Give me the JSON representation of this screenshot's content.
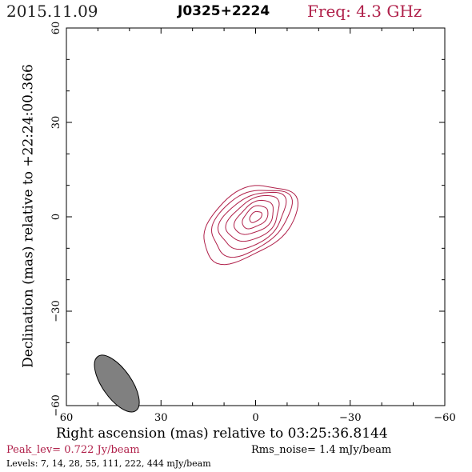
{
  "header": {
    "date": "2015.11.09",
    "source": "J0325+2224",
    "frequency": "Freq: 4.3 GHz"
  },
  "footer": {
    "peak_level": "Peak_lev=  0.722 Jy/beam",
    "rms_noise": "Rms_noise=   1.4 mJy/beam",
    "levels": "Levels:   7,  14,  28,  55, 111, 222, 444 mJy/beam"
  },
  "colors": {
    "contour": "#b0204a",
    "beam_fill": "#808080",
    "axis": "#000000"
  },
  "chart_data": {
    "type": "contour",
    "xlabel": "Right ascension (mas) relative to 03:25:36.8144",
    "ylabel": "Declination (mas) relative to +22:24:00.366",
    "xlim": [
      60,
      -60
    ],
    "ylim": [
      -60,
      60
    ],
    "x_ticks": [
      "60",
      "30",
      "0",
      "−30",
      "−60"
    ],
    "y_ticks": [
      "−60",
      "−30",
      "0",
      "30",
      "60"
    ],
    "x_tick_values": [
      60,
      30,
      0,
      -30,
      -60
    ],
    "y_tick_values": [
      -60,
      -30,
      0,
      30,
      60
    ],
    "contour_levels_mJy": [
      7,
      14,
      28,
      55,
      111,
      222,
      444
    ],
    "contours": [
      {
        "level": 7,
        "center": [
          2,
          -2
        ],
        "semi_major": 16.5,
        "semi_minor": 10.0,
        "angle_deg": -33
      },
      {
        "level": 14,
        "center": [
          1.5,
          -1.5
        ],
        "semi_major": 14.0,
        "semi_minor": 8.6,
        "angle_deg": -34
      },
      {
        "level": 28,
        "center": [
          1.0,
          -1.0
        ],
        "semi_major": 11.8,
        "semi_minor": 7.2,
        "angle_deg": -35
      },
      {
        "level": 55,
        "center": [
          0.6,
          -0.6
        ],
        "semi_major": 9.4,
        "semi_minor": 5.8,
        "angle_deg": -36
      },
      {
        "level": 111,
        "center": [
          0.3,
          -0.3
        ],
        "semi_major": 7.0,
        "semi_minor": 4.3,
        "angle_deg": -36
      },
      {
        "level": 222,
        "center": [
          0.1,
          -0.1
        ],
        "semi_major": 4.6,
        "semi_minor": 2.9,
        "angle_deg": -37
      },
      {
        "level": 444,
        "center": [
          0.0,
          0.0
        ],
        "semi_major": 2.2,
        "semi_minor": 1.4,
        "angle_deg": -37
      }
    ],
    "beam": {
      "center": [
        44,
        -53
      ],
      "major_mas": 10.5,
      "minor_mas": 4.6,
      "angle_deg": -35
    },
    "grid": false
  }
}
